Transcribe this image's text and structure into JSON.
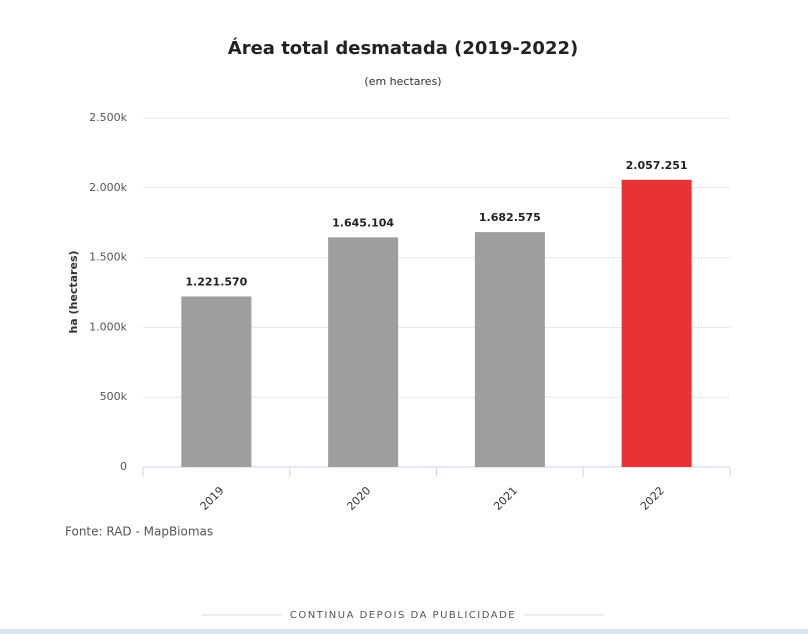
{
  "chart_data": {
    "type": "bar",
    "title": "Área total desmatada (2019-2022)",
    "subtitle": "(em hectares)",
    "y_label": "ha (hectares)",
    "categories": [
      "2019",
      "2020",
      "2021",
      "2022"
    ],
    "values": [
      1221570,
      1645104,
      1682575,
      2057251
    ],
    "value_labels": [
      "1.221.570",
      "1.645.104",
      "1.682.575",
      "2.057.251"
    ],
    "colors": [
      "#9e9e9e",
      "#9e9e9e",
      "#9e9e9e",
      "#ea3236"
    ],
    "ylim": [
      0,
      2500000
    ],
    "yticks": [
      0,
      {
        "value": 500000,
        "label": "500k"
      },
      {
        "value": 1000000,
        "label": "1.000k"
      },
      {
        "value": 1500000,
        "label": "1.500k"
      },
      {
        "value": 2000000,
        "label": "2.000k"
      },
      {
        "value": 2500000,
        "label": "2.500k"
      }
    ],
    "grid": true,
    "source": "Fonte: RAD - MapBiomas"
  },
  "advert_separator": "CONTINUA DEPOIS DA PUBLICIDADE"
}
